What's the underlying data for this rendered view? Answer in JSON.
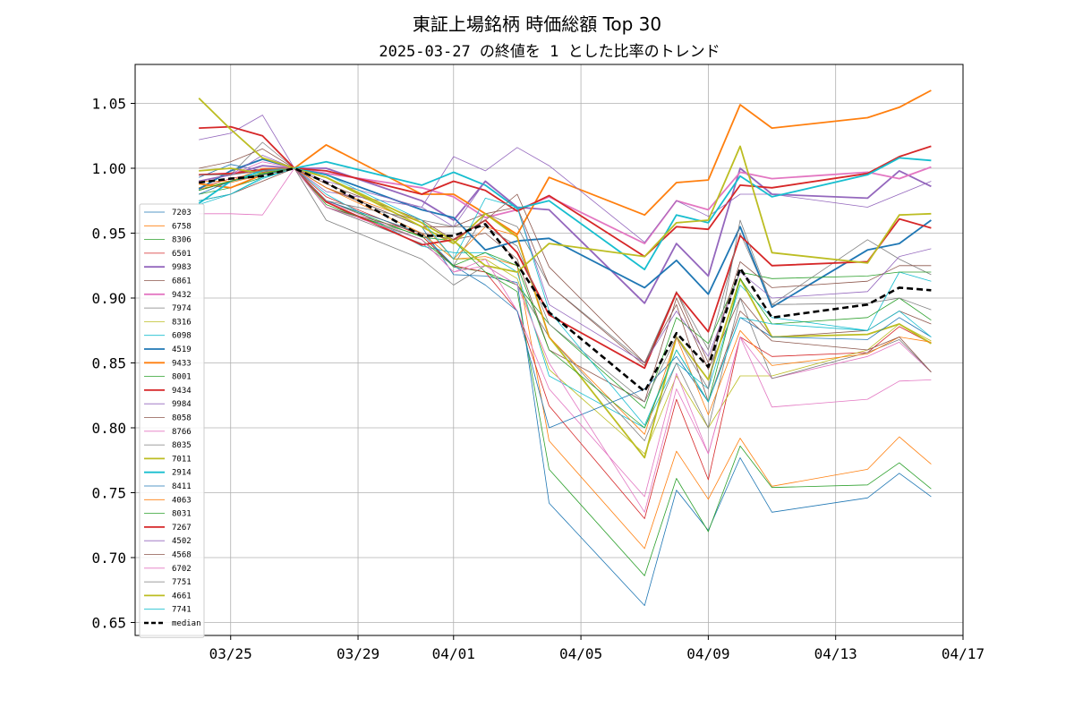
{
  "chart_data": {
    "type": "line",
    "title": "東証上場銘柄 時価総額 Top 30",
    "subtitle": "2025-03-27 の終値を 1 とした比率のトレンド",
    "x_dates": [
      "2025-03-24",
      "2025-03-25",
      "2025-03-26",
      "2025-03-27",
      "2025-03-28",
      "2025-03-31",
      "2025-04-01",
      "2025-04-02",
      "2025-04-03",
      "2025-04-04",
      "2025-04-07",
      "2025-04-08",
      "2025-04-09",
      "2025-04-10",
      "2025-04-11",
      "2025-04-14",
      "2025-04-15",
      "2025-04-16"
    ],
    "x_ticks": [
      {
        "date": "2025-03-25",
        "label": "03/25"
      },
      {
        "date": "2025-03-29",
        "label": "03/29"
      },
      {
        "date": "2025-04-01",
        "label": "04/01"
      },
      {
        "date": "2025-04-05",
        "label": "04/05"
      },
      {
        "date": "2025-04-09",
        "label": "04/09"
      },
      {
        "date": "2025-04-13",
        "label": "04/13"
      },
      {
        "date": "2025-04-17",
        "label": "04/17"
      }
    ],
    "x_range": [
      "2025-03-22",
      "2025-04-17"
    ],
    "ylim": [
      0.64,
      1.08
    ],
    "y_ticks": [
      0.65,
      0.7,
      0.75,
      0.8,
      0.85,
      0.9,
      0.95,
      1.0,
      1.05
    ],
    "y_tick_labels": [
      "0.65",
      "0.70",
      "0.75",
      "0.80",
      "0.85",
      "0.90",
      "0.95",
      "1.00",
      "1.05"
    ],
    "grid": true,
    "legend_position": "left",
    "series": [
      {
        "name": "7203",
        "color": "#1f77b4",
        "width": 0.8,
        "values": [
          0.993,
          1.003,
          0.998,
          1.0,
          0.985,
          0.955,
          0.918,
          0.917,
          0.912,
          0.742,
          0.663,
          0.752,
          0.721,
          0.777,
          0.735,
          0.746,
          0.765,
          0.747
        ]
      },
      {
        "name": "6758",
        "color": "#ff7f0e",
        "width": 0.8,
        "values": [
          0.984,
          0.989,
          0.995,
          1.0,
          0.985,
          0.958,
          0.93,
          0.932,
          0.925,
          0.79,
          0.707,
          0.782,
          0.745,
          0.792,
          0.755,
          0.768,
          0.793,
          0.772
        ]
      },
      {
        "name": "8306",
        "color": "#2ca02c",
        "width": 0.8,
        "values": [
          0.98,
          0.985,
          0.993,
          1.0,
          0.97,
          0.948,
          0.924,
          0.92,
          0.905,
          0.768,
          0.686,
          0.761,
          0.72,
          0.786,
          0.754,
          0.756,
          0.773,
          0.753
        ]
      },
      {
        "name": "6501",
        "color": "#d62728",
        "width": 0.8,
        "values": [
          0.985,
          0.992,
          0.997,
          1.0,
          0.978,
          0.948,
          0.925,
          0.92,
          0.89,
          0.817,
          0.73,
          0.822,
          0.76,
          0.87,
          0.855,
          0.858,
          0.878,
          0.865
        ]
      },
      {
        "name": "9983",
        "color": "#9467bd",
        "width": 1.8,
        "values": [
          0.99,
          0.995,
          1.002,
          1.0,
          1.0,
          0.975,
          0.96,
          0.99,
          0.97,
          0.968,
          0.896,
          0.942,
          0.917,
          1.0,
          0.98,
          0.977,
          0.998,
          0.986
        ]
      },
      {
        "name": "6861",
        "color": "#8c564b",
        "width": 0.8,
        "values": [
          0.983,
          0.99,
          0.996,
          1.0,
          0.988,
          0.96,
          0.945,
          0.95,
          0.93,
          0.86,
          0.82,
          0.9,
          0.845,
          0.9,
          0.87,
          0.875,
          0.89,
          0.88
        ]
      },
      {
        "name": "9432",
        "color": "#e377c2",
        "width": 1.8,
        "values": [
          0.995,
          0.996,
          0.998,
          1.0,
          0.996,
          0.985,
          0.978,
          0.962,
          0.968,
          0.978,
          0.942,
          0.975,
          0.968,
          0.997,
          0.992,
          0.997,
          0.992,
          1.001
        ]
      },
      {
        "name": "7974",
        "color": "#7f7f7f",
        "width": 0.8,
        "values": [
          0.99,
          0.995,
          1.02,
          1.0,
          0.97,
          0.942,
          0.925,
          0.965,
          0.955,
          0.91,
          0.85,
          0.905,
          0.86,
          0.95,
          0.895,
          0.945,
          0.93,
          0.918
        ]
      },
      {
        "name": "8316",
        "color": "#bcbd22",
        "width": 0.8,
        "values": [
          0.985,
          0.99,
          0.996,
          1.0,
          0.975,
          0.95,
          0.93,
          0.93,
          0.915,
          0.845,
          0.78,
          0.84,
          0.8,
          0.84,
          0.84,
          0.86,
          0.88,
          0.867
        ]
      },
      {
        "name": "6098",
        "color": "#17becf",
        "width": 0.8,
        "values": [
          0.972,
          0.98,
          0.993,
          1.0,
          0.98,
          0.94,
          0.935,
          0.935,
          0.92,
          0.84,
          0.8,
          0.85,
          0.83,
          0.91,
          0.885,
          0.875,
          0.92,
          0.913
        ]
      },
      {
        "name": "4519",
        "color": "#1f77b4",
        "width": 1.8,
        "values": [
          0.984,
          0.998,
          1.007,
          1.0,
          0.995,
          0.968,
          0.962,
          0.937,
          0.944,
          0.946,
          0.908,
          0.929,
          0.903,
          0.955,
          0.893,
          0.937,
          0.942,
          0.96
        ]
      },
      {
        "name": "9433",
        "color": "#ff7f0e",
        "width": 1.8,
        "values": [
          0.988,
          0.985,
          0.995,
          1.0,
          1.018,
          0.98,
          0.98,
          0.965,
          0.949,
          0.993,
          0.964,
          0.989,
          0.991,
          1.049,
          1.031,
          1.039,
          1.047,
          1.06
        ]
      },
      {
        "name": "8001",
        "color": "#2ca02c",
        "width": 0.8,
        "values": [
          0.983,
          0.99,
          0.996,
          1.0,
          0.975,
          0.947,
          0.944,
          0.92,
          0.91,
          0.88,
          0.815,
          0.885,
          0.865,
          0.92,
          0.915,
          0.917,
          0.92,
          0.92
        ]
      },
      {
        "name": "9434",
        "color": "#d62728",
        "width": 1.8,
        "values": [
          0.995,
          0.996,
          0.999,
          1.0,
          0.998,
          0.98,
          0.99,
          0.983,
          0.967,
          0.979,
          0.932,
          0.955,
          0.953,
          0.987,
          0.985,
          0.996,
          1.009,
          1.017
        ]
      },
      {
        "name": "9984",
        "color": "#9467bd",
        "width": 0.8,
        "values": [
          1.022,
          1.027,
          1.041,
          1.0,
          0.982,
          0.97,
          1.009,
          0.998,
          1.016,
          1.002,
          0.943,
          0.975,
          0.963,
          0.98,
          0.98,
          0.97,
          0.98,
          0.99
        ]
      },
      {
        "name": "8058",
        "color": "#8c564b",
        "width": 0.8,
        "values": [
          1.0,
          1.005,
          1.015,
          1.0,
          0.985,
          0.955,
          0.955,
          0.965,
          0.97,
          0.91,
          0.848,
          0.905,
          0.85,
          0.928,
          0.908,
          0.913,
          0.925,
          0.925
        ]
      },
      {
        "name": "8766",
        "color": "#e377c2",
        "width": 0.8,
        "values": [
          0.99,
          0.995,
          1.005,
          1.0,
          0.975,
          0.945,
          0.92,
          0.93,
          0.89,
          0.83,
          0.747,
          0.842,
          0.78,
          0.87,
          0.838,
          0.855,
          0.866,
          0.843
        ]
      },
      {
        "name": "8035",
        "color": "#7f7f7f",
        "width": 0.8,
        "values": [
          0.983,
          0.99,
          0.995,
          1.0,
          0.96,
          0.93,
          0.91,
          0.925,
          0.91,
          0.87,
          0.79,
          0.85,
          0.8,
          0.9,
          0.838,
          0.858,
          0.868,
          0.843
        ]
      },
      {
        "name": "7011",
        "color": "#bcbd22",
        "width": 1.8,
        "values": [
          0.998,
          1.0,
          0.996,
          1.0,
          0.993,
          0.955,
          0.942,
          0.965,
          0.947,
          0.87,
          0.777,
          0.87,
          0.837,
          0.915,
          0.87,
          0.872,
          0.88,
          0.865
        ]
      },
      {
        "name": "2914",
        "color": "#17becf",
        "width": 1.8,
        "values": [
          0.973,
          0.99,
          0.998,
          1.0,
          1.005,
          0.987,
          0.997,
          0.987,
          0.969,
          0.975,
          0.922,
          0.964,
          0.958,
          0.994,
          0.978,
          0.995,
          1.008,
          1.006
        ]
      },
      {
        "name": "8411",
        "color": "#1f77b4",
        "width": 0.8,
        "values": [
          0.98,
          0.99,
          0.995,
          1.0,
          0.975,
          0.95,
          0.925,
          0.91,
          0.89,
          0.8,
          0.83,
          0.855,
          0.82,
          0.885,
          0.87,
          0.868,
          0.885,
          0.87
        ]
      },
      {
        "name": "4063",
        "color": "#ff7f0e",
        "width": 0.8,
        "values": [
          0.99,
          0.99,
          1.0,
          1.0,
          0.985,
          0.95,
          0.93,
          0.955,
          0.948,
          0.87,
          0.795,
          0.87,
          0.81,
          0.875,
          0.848,
          0.857,
          0.87,
          0.866
        ]
      },
      {
        "name": "8031",
        "color": "#2ca02c",
        "width": 0.8,
        "values": [
          0.983,
          0.99,
          0.996,
          1.0,
          0.972,
          0.945,
          0.925,
          0.935,
          0.925,
          0.86,
          0.8,
          0.86,
          0.82,
          0.915,
          0.88,
          0.885,
          0.9,
          0.883
        ]
      },
      {
        "name": "7267",
        "color": "#d62728",
        "width": 1.8,
        "values": [
          1.031,
          1.032,
          1.025,
          1.0,
          0.974,
          0.941,
          0.945,
          0.96,
          0.935,
          0.887,
          0.846,
          0.904,
          0.874,
          0.948,
          0.925,
          0.928,
          0.961,
          0.954
        ]
      },
      {
        "name": "4502",
        "color": "#9467bd",
        "width": 0.8,
        "values": [
          0.99,
          0.995,
          1.01,
          1.0,
          0.99,
          0.97,
          0.955,
          0.99,
          0.97,
          0.895,
          0.85,
          0.89,
          0.855,
          0.92,
          0.9,
          0.905,
          0.932,
          0.938
        ]
      },
      {
        "name": "4568",
        "color": "#8c564b",
        "width": 0.8,
        "values": [
          0.975,
          0.98,
          0.99,
          1.0,
          0.97,
          0.95,
          0.945,
          0.96,
          0.98,
          0.924,
          0.85,
          0.895,
          0.82,
          0.89,
          0.867,
          0.86,
          0.87,
          0.843
        ]
      },
      {
        "name": "6702",
        "color": "#e377c2",
        "width": 0.8,
        "values": [
          0.965,
          0.965,
          0.964,
          1.0,
          0.97,
          0.945,
          0.92,
          0.925,
          0.91,
          0.85,
          0.735,
          0.83,
          0.78,
          0.87,
          0.816,
          0.822,
          0.836,
          0.837
        ]
      },
      {
        "name": "7751",
        "color": "#7f7f7f",
        "width": 0.8,
        "values": [
          0.995,
          0.995,
          0.998,
          1.0,
          0.975,
          0.96,
          0.955,
          0.955,
          0.94,
          0.88,
          0.82,
          0.87,
          0.83,
          0.96,
          0.895,
          0.896,
          0.9,
          0.891
        ]
      },
      {
        "name": "4661",
        "color": "#bcbd22",
        "width": 1.8,
        "values": [
          1.054,
          1.03,
          1.008,
          1.0,
          0.993,
          0.958,
          0.944,
          0.925,
          0.92,
          0.942,
          0.932,
          0.958,
          0.96,
          1.017,
          0.935,
          0.927,
          0.964,
          0.965
        ]
      },
      {
        "name": "7741",
        "color": "#17becf",
        "width": 0.8,
        "values": [
          0.975,
          0.98,
          0.992,
          1.0,
          0.995,
          0.96,
          0.93,
          0.977,
          0.97,
          0.89,
          0.802,
          0.86,
          0.82,
          0.885,
          0.88,
          0.875,
          0.89,
          0.87
        ]
      },
      {
        "name": "median",
        "color": "#000000",
        "width": 2.6,
        "dashed": true,
        "values": [
          0.989,
          0.992,
          0.994,
          1.0,
          0.989,
          0.948,
          0.948,
          0.957,
          0.926,
          0.889,
          0.828,
          0.873,
          0.847,
          0.923,
          0.885,
          0.895,
          0.908,
          0.906
        ]
      }
    ]
  }
}
